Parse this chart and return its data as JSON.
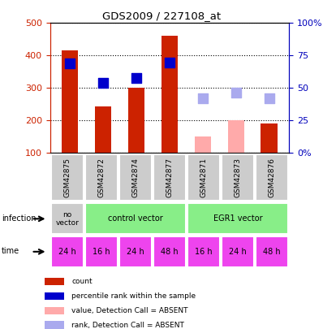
{
  "title": "GDS2009 / 227108_at",
  "samples": [
    "GSM42875",
    "GSM42872",
    "GSM42874",
    "GSM42877",
    "GSM42871",
    "GSM42873",
    "GSM42876"
  ],
  "bar_values": [
    415,
    243,
    302,
    460,
    null,
    null,
    191
  ],
  "bar_absent_values": [
    null,
    null,
    null,
    null,
    152,
    200,
    null
  ],
  "bar_color": "#cc2200",
  "bar_absent_color": "#ffaaaa",
  "rank_values": [
    375,
    315,
    330,
    378,
    null,
    null,
    null
  ],
  "rank_absent_values": [
    null,
    null,
    null,
    null,
    268,
    285,
    268
  ],
  "rank_color": "#0000cc",
  "rank_absent_color": "#aaaaee",
  "ylim_left": [
    100,
    500
  ],
  "ylim_right": [
    0,
    100
  ],
  "yticks_left": [
    100,
    200,
    300,
    400,
    500
  ],
  "yticks_right": [
    0,
    25,
    50,
    75,
    100
  ],
  "ytick_labels_right": [
    "0%",
    "25",
    "50",
    "75",
    "100%"
  ],
  "time_labels": [
    "24 h",
    "16 h",
    "24 h",
    "48 h",
    "16 h",
    "24 h",
    "48 h"
  ],
  "time_color": "#ee44ee",
  "legend": [
    {
      "label": "count",
      "color": "#cc2200"
    },
    {
      "label": "percentile rank within the sample",
      "color": "#0000cc"
    },
    {
      "label": "value, Detection Call = ABSENT",
      "color": "#ffaaaa"
    },
    {
      "label": "rank, Detection Call = ABSENT",
      "color": "#aaaaee"
    }
  ],
  "bar_width": 0.5,
  "rank_marker_size": 80,
  "background_color": "#ffffff",
  "left_axis_color": "#cc2200",
  "right_axis_color": "#0000bb"
}
